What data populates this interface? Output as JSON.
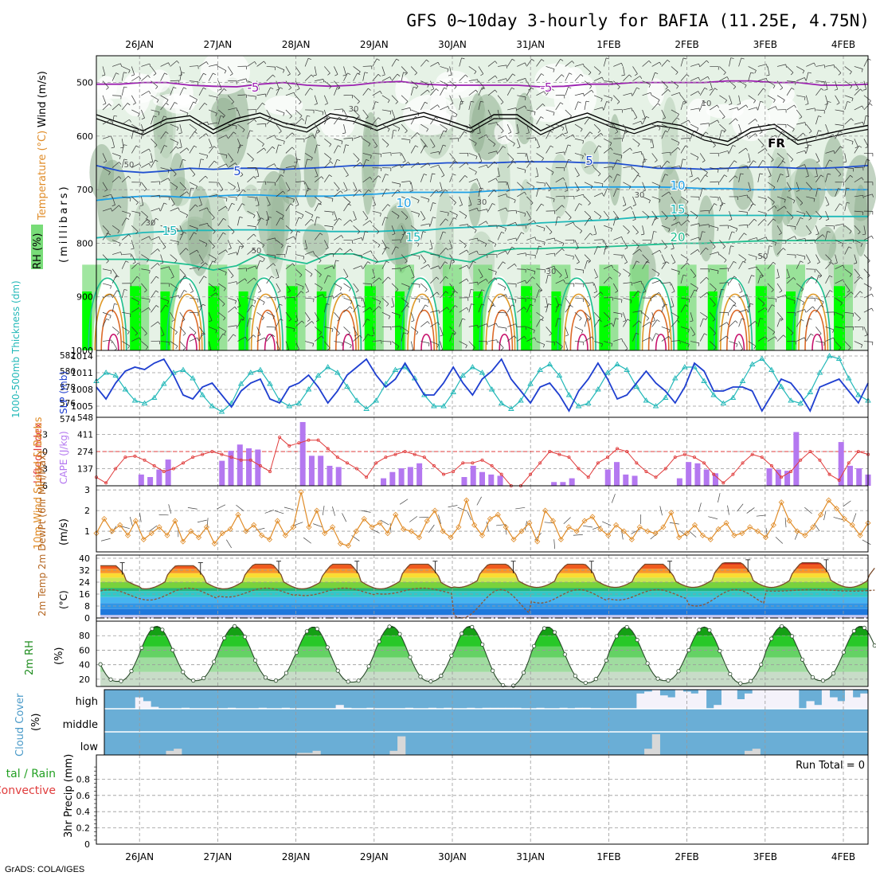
{
  "title": "GFS 0~10day 3-hourly for BAFIA (11.25E, 4.75N)",
  "credit": "GrADS: COLA/IGES",
  "dates": [
    "26JAN",
    "27JAN",
    "28JAN",
    "29JAN",
    "30JAN",
    "31JAN",
    "1FEB",
    "2FEB",
    "3FEB",
    "4FEB"
  ],
  "colors": {
    "rh_light": "#e6f2e6",
    "rh_mid": "#b4cdb4",
    "rh_dark": "#8fae8f",
    "rh_green": "#78dc78",
    "rh_bright": "#00ff00",
    "temp_neg5": "#9b1fb0",
    "temp_5": "#1f4fd0",
    "temp_10": "#1ea0e6",
    "temp_15": "#1fb9b9",
    "temp_20": "#1fbf8f",
    "temp_25": "#e09a28",
    "temp_30": "#dc6a28",
    "temp_35": "#c8146e",
    "thickness": "#1f3fd0",
    "slp": "#22b8b8",
    "lifted_index": "#e03c3c",
    "cape": "#b478f0",
    "wind10m": "#e08c28",
    "dewpoint": "#8c5a3c",
    "cloud_blue": "#6aaed6",
    "cloud_white": "#f4f2fa",
    "cloud_low": "#d8d8d8"
  },
  "chart_data": [
    {
      "type": "heatmap",
      "panel": "upper-air",
      "ylabel_wind": "Wind (m/s)",
      "ylabel_temp": "Temperature (°C)",
      "ylabel_rh": "RH (%)",
      "ylabel_units": "(millibars)",
      "y_ticks": [
        "500",
        "600",
        "700",
        "800",
        "900",
        "1000"
      ],
      "ylim": [
        1000,
        450
      ],
      "isotherm_labels": [
        "-5",
        "-5",
        "FR",
        "5",
        "5",
        "10",
        "10",
        "15",
        "15",
        "15",
        "20"
      ],
      "rh_labels": [
        "50",
        "30",
        "10",
        "30",
        "30",
        "30",
        "50",
        "50",
        "30"
      ],
      "isotherms": [
        {
          "name": "-5",
          "color": "temp_neg5",
          "levels": [
            503,
            503,
            500,
            500,
            505,
            507,
            508,
            503,
            500,
            505,
            507,
            505,
            500,
            498,
            503,
            505,
            505,
            505,
            505,
            508,
            507,
            503,
            503,
            500,
            500,
            500,
            500,
            497,
            497,
            500,
            500,
            505,
            505,
            503
          ]
        },
        {
          "name": "0",
          "color": "black",
          "levels": [
            560,
            575,
            590,
            568,
            562,
            588,
            567,
            557,
            575,
            585,
            558,
            565,
            582,
            565,
            556,
            570,
            585,
            560,
            560,
            590,
            570,
            557,
            575,
            588,
            573,
            580,
            600,
            610,
            585,
            578,
            608,
            598,
            588,
            580
          ]
        },
        {
          "name": "5",
          "color": "temp_5",
          "levels": [
            655,
            665,
            668,
            665,
            660,
            662,
            660,
            660,
            662,
            660,
            658,
            655,
            655,
            654,
            652,
            650,
            650,
            650,
            648,
            648,
            648,
            650,
            650,
            655,
            660,
            660,
            662,
            660,
            658,
            658,
            660,
            660,
            658,
            655
          ]
        },
        {
          "name": "10",
          "color": "temp_10",
          "levels": [
            720,
            715,
            712,
            712,
            715,
            712,
            710,
            710,
            712,
            712,
            712,
            710,
            708,
            705,
            705,
            705,
            705,
            702,
            700,
            698,
            696,
            695,
            695,
            695,
            695,
            696,
            698,
            698,
            700,
            700,
            698,
            700,
            700,
            700
          ]
        },
        {
          "name": "15",
          "color": "temp_15",
          "levels": [
            790,
            785,
            780,
            778,
            776,
            776,
            775,
            775,
            776,
            776,
            778,
            778,
            778,
            776,
            776,
            772,
            770,
            768,
            766,
            762,
            760,
            758,
            756,
            752,
            750,
            748,
            748,
            748,
            748,
            748,
            748,
            750,
            750,
            750
          ]
        },
        {
          "name": "20",
          "color": "temp_20",
          "levels": [
            830,
            830,
            830,
            835,
            840,
            850,
            842,
            820,
            830,
            838,
            820,
            820,
            835,
            828,
            815,
            828,
            835,
            815,
            810,
            810,
            808,
            808,
            806,
            804,
            802,
            800,
            800,
            798,
            796,
            795,
            795,
            795,
            795,
            795
          ]
        }
      ],
      "warm_days": [
        "26JAN",
        "27JAN",
        "28JAN",
        "29JAN",
        "30JAN",
        "31JAN",
        "1FEB",
        "2FEB",
        "3FEB",
        "4FEB"
      ]
    },
    {
      "type": "line",
      "panel": "thickness-slp",
      "ylabel_thickness": "1000-500mb Thickness (dm)",
      "ylabel_slp": "SLP (mb)",
      "thickness_ticks": [
        "582",
        "580",
        "578",
        "576",
        "574"
      ],
      "slp_ticks": [
        "1014",
        "1011",
        "1008",
        "1005"
      ],
      "thickness_ylim": [
        574,
        582
      ],
      "slp_ylim": [
        1003,
        1015
      ],
      "thickness": [
        578.0,
        576.5,
        578.5,
        580.0,
        580.5,
        580.2,
        581.0,
        581.5,
        579.5,
        577.0,
        576.5,
        578.0,
        578.5,
        577.0,
        575.5,
        577.5,
        578.5,
        579.0,
        576.5,
        576.0,
        578.0,
        578.5,
        579.5,
        578.0,
        576.0,
        577.5,
        579.5,
        580.5,
        581.5,
        579.5,
        578.0,
        579.0,
        581.0,
        579.0,
        577.0,
        577.0,
        578.5,
        580.5,
        578.5,
        577.0,
        579.0,
        580.0,
        581.5,
        579.0,
        577.5,
        576.0,
        578.0,
        578.5,
        577.0,
        575.0,
        577.5,
        579.0,
        581.0,
        579.0,
        576.5,
        577.0,
        578.5,
        580.0,
        578.5,
        577.5,
        576.0,
        578.0,
        581.0,
        580.0,
        577.5,
        577.5,
        578.0,
        578.0,
        577.5,
        575.0,
        577.0,
        579.0,
        578.5,
        577.0,
        575.0,
        578.0,
        578.5,
        579.0,
        577.5,
        576.0,
        578.5
      ],
      "slp": [
        1009.5,
        1011.0,
        1010.5,
        1008.0,
        1006.0,
        1005.5,
        1006.5,
        1009.0,
        1011.0,
        1011.5,
        1010.0,
        1007.0,
        1005.0,
        1004.0,
        1005.5,
        1009.0,
        1011.0,
        1011.5,
        1009.0,
        1006.0,
        1005.0,
        1005.5,
        1008.0,
        1010.5,
        1012.0,
        1011.0,
        1008.5,
        1006.0,
        1004.5,
        1006.0,
        1009.0,
        1011.5,
        1012.0,
        1010.0,
        1007.0,
        1005.0,
        1005.0,
        1007.5,
        1010.5,
        1012.0,
        1011.0,
        1008.0,
        1005.5,
        1004.5,
        1006.0,
        1009.0,
        1011.5,
        1012.5,
        1010.5,
        1007.0,
        1005.0,
        1005.5,
        1008.0,
        1011.0,
        1012.5,
        1011.5,
        1008.5,
        1006.0,
        1005.0,
        1006.5,
        1010.0,
        1012.0,
        1012.0,
        1009.5,
        1007.0,
        1005.5,
        1006.5,
        1009.5,
        1012.5,
        1013.5,
        1011.5,
        1008.5,
        1006.0,
        1005.5,
        1007.5,
        1011.0,
        1014.0,
        1013.5,
        1010.0,
        1007.0,
        1006.0
      ]
    },
    {
      "type": "bar",
      "panel": "stability",
      "ylabel_li": "Lifted Index",
      "ylabel_cape": "CAPE (J/kg)",
      "li_ticks": [
        "-3",
        "0",
        "3",
        "6"
      ],
      "cape_ticks": [
        "548",
        "411",
        "274",
        "137"
      ],
      "li_ylim": [
        6,
        -6
      ],
      "cape_ylim": [
        0,
        548
      ],
      "lifted_index": [
        4.5,
        5.5,
        3.0,
        1.0,
        0.8,
        1.5,
        2.5,
        3.5,
        3.0,
        2.0,
        1.0,
        0.5,
        0.0,
        0.5,
        1.0,
        1.5,
        1.5,
        2.5,
        3.5,
        -2.5,
        -1.0,
        -1.5,
        -2.0,
        -2.0,
        -0.5,
        1.0,
        2.0,
        3.0,
        4.5,
        2.0,
        1.0,
        0.5,
        0.0,
        0.5,
        1.0,
        2.5,
        4.0,
        3.5,
        2.0,
        2.0,
        1.5,
        2.5,
        4.0,
        6.0,
        6.0,
        4.0,
        2.0,
        0.0,
        0.5,
        1.0,
        3.0,
        4.5,
        2.0,
        1.0,
        -0.5,
        0.0,
        2.0,
        3.5,
        4.5,
        3.0,
        1.0,
        0.5,
        1.0,
        2.0,
        4.0,
        5.5,
        4.0,
        2.0,
        0.5,
        1.0,
        2.5,
        4.5,
        3.5,
        1.5,
        0.0,
        1.5,
        4.0,
        5.0,
        2.0,
        0.0,
        0.5
      ],
      "cape": [
        0,
        0,
        0,
        0,
        0,
        90,
        70,
        130,
        210,
        0,
        0,
        0,
        0,
        0,
        200,
        280,
        330,
        300,
        290,
        0,
        0,
        0,
        0,
        510,
        240,
        240,
        160,
        150,
        0,
        0,
        0,
        0,
        60,
        110,
        140,
        150,
        180,
        0,
        0,
        0,
        0,
        70,
        160,
        110,
        90,
        80,
        0,
        0,
        0,
        0,
        0,
        30,
        30,
        60,
        0,
        0,
        0,
        130,
        190,
        90,
        80,
        0,
        0,
        0,
        0,
        60,
        190,
        180,
        130,
        100,
        0,
        0,
        0,
        0,
        0,
        140,
        130,
        120,
        430,
        0,
        0,
        0,
        0,
        350,
        160,
        140,
        90
      ]
    },
    {
      "type": "line",
      "panel": "wind10m",
      "ylabel": "10m Wind Speed & Barbs",
      "ylabel_units": "(m/s)",
      "y_ticks": [
        "1",
        "2",
        "3"
      ],
      "ylim": [
        0,
        3.2
      ],
      "values": [
        0.9,
        1.6,
        1.0,
        1.3,
        0.8,
        1.5,
        0.6,
        0.9,
        1.2,
        0.8,
        1.5,
        0.5,
        1.0,
        0.7,
        1.2,
        0.4,
        0.9,
        1.1,
        1.8,
        1.0,
        1.3,
        0.8,
        0.6,
        1.5,
        0.8,
        1.2,
        2.9,
        1.2,
        2.0,
        0.9,
        1.2,
        0.4,
        0.3,
        1.0,
        1.6,
        1.2,
        1.4,
        0.9,
        1.8,
        1.1,
        1.0,
        0.7,
        1.5,
        2.0,
        1.0,
        0.7,
        1.2,
        2.5,
        1.3,
        0.8,
        1.6,
        1.8,
        1.2,
        0.6,
        1.0,
        1.4,
        0.5,
        2.0,
        1.5,
        0.6,
        1.2,
        1.0,
        1.5,
        1.7,
        1.1,
        0.8,
        1.3,
        1.0,
        0.6,
        1.2,
        1.0,
        0.9,
        1.2,
        1.9,
        0.7,
        0.9,
        1.3,
        0.8,
        0.6,
        1.1,
        1.4,
        0.8,
        0.9,
        1.2,
        1.0,
        0.7,
        1.3,
        2.4,
        1.5,
        1.0,
        0.8,
        1.2,
        1.8,
        2.5,
        2.1,
        1.6,
        1.3,
        0.8,
        1.4
      ]
    },
    {
      "type": "area",
      "panel": "temperature",
      "ylabel": "2m Temp 2m DewPt (6hr Min/Max)",
      "ylabel_units": "(°C)",
      "y_ticks": [
        "0",
        "8",
        "16",
        "24",
        "32",
        "40"
      ],
      "ylim": [
        0,
        40
      ],
      "temp_max_daily": [
        35,
        35,
        36,
        36,
        36,
        36,
        36,
        36,
        37,
        37
      ],
      "temp_min_daily": [
        20,
        19,
        19,
        19,
        19,
        20,
        20,
        20,
        20,
        20
      ],
      "dewpoint_daily_min": [
        12,
        12,
        14,
        15,
        16,
        0,
        10,
        12,
        8,
        18
      ],
      "dewpoint_daily_max": [
        19,
        20,
        20,
        20,
        20,
        19,
        19,
        19,
        19,
        19
      ]
    },
    {
      "type": "area",
      "panel": "relative-humidity",
      "ylabel": "2m RH",
      "ylabel_units": "(%)",
      "y_ticks": [
        "20",
        "40",
        "60",
        "80"
      ],
      "ylim": [
        10,
        100
      ],
      "rh_max_daily": [
        93,
        93,
        93,
        92,
        93,
        93,
        92,
        92,
        92,
        93
      ],
      "rh_min_daily": [
        17,
        18,
        18,
        16,
        17,
        10,
        15,
        18,
        14,
        18
      ]
    },
    {
      "type": "bar",
      "panel": "cloud-cover",
      "ylabel": "Cloud Cover",
      "ylabel_units": "(%)",
      "levels": [
        "high",
        "middle",
        "low"
      ],
      "high_white": [
        0,
        0,
        0,
        0,
        60,
        40,
        10,
        0,
        0,
        0,
        5,
        0,
        0,
        0,
        0,
        0,
        5,
        0,
        0,
        0,
        5,
        0,
        0,
        5,
        0,
        0,
        0,
        0,
        0,
        0,
        20,
        5,
        0,
        0,
        5,
        0,
        0,
        0,
        0,
        5,
        0,
        0,
        5,
        0,
        5,
        0,
        0,
        5,
        0,
        5,
        5,
        5,
        5,
        5,
        0,
        0,
        5,
        0,
        0,
        5,
        0,
        5,
        5,
        0,
        0,
        0,
        0,
        0,
        0,
        80,
        90,
        100,
        70,
        60,
        100,
        90,
        80,
        100,
        0,
        20,
        100,
        100,
        50,
        80,
        100,
        100,
        100,
        100,
        100,
        100,
        0,
        40,
        20,
        100,
        60,
        40,
        100,
        60,
        80
      ],
      "low_grey": [
        0,
        0,
        0,
        0,
        0,
        0,
        0,
        0,
        20,
        30,
        0,
        0,
        0,
        0,
        0,
        0,
        0,
        0,
        0,
        0,
        0,
        0,
        0,
        0,
        0,
        10,
        10,
        20,
        0,
        0,
        0,
        0,
        0,
        0,
        0,
        0,
        0,
        20,
        90,
        0,
        0,
        0,
        0,
        0,
        0,
        0,
        0,
        0,
        0,
        0,
        0,
        0,
        0,
        0,
        0,
        0,
        0,
        0,
        0,
        0,
        0,
        0,
        0,
        0,
        0,
        0,
        0,
        0,
        0,
        0,
        30,
        100,
        0,
        0,
        0,
        0,
        0,
        0,
        0,
        0,
        0,
        0,
        0,
        20,
        30,
        0,
        0,
        0,
        0,
        0,
        0,
        0,
        0,
        0,
        0,
        0,
        0,
        0,
        0
      ]
    },
    {
      "type": "line",
      "panel": "precipitation",
      "ylabel": "3hr Precip (mm)",
      "ylabel_total_rain": "tal / Rain",
      "ylabel_convective": "Convective",
      "y_ticks": [
        "0",
        "0.2",
        "0.4",
        "0.6",
        "0.8"
      ],
      "ylim": [
        0,
        1
      ],
      "run_total": "Run Total = 0",
      "values": []
    }
  ]
}
